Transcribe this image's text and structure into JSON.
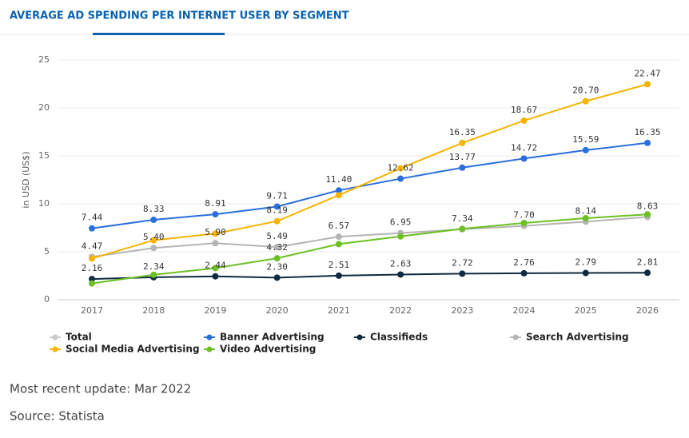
{
  "chart_data": {
    "type": "line",
    "title": "AVERAGE AD SPENDING PER INTERNET USER BY SEGMENT",
    "y_label": "in USD (US$)",
    "categories": [
      "2017",
      "2018",
      "2019",
      "2020",
      "2021",
      "2022",
      "2023",
      "2024",
      "2025",
      "2026"
    ],
    "ylim": [
      0,
      25
    ],
    "yticks": [
      0,
      5,
      10,
      15,
      20,
      25
    ],
    "grid": true,
    "legend_hidden": [
      {
        "name": "Total",
        "color": "#c8c8c8"
      }
    ],
    "series": [
      {
        "name": "Banner Advertising",
        "color": "#2a6fdb",
        "values": [
          7.44,
          8.33,
          8.91,
          9.71,
          11.4,
          12.62,
          13.77,
          14.72,
          15.59,
          16.35
        ],
        "value_labels": [
          "7.44",
          "8.33",
          "8.91",
          "9.71",
          "11.40",
          "12.62",
          "13.77",
          "14.72",
          "15.59",
          "16.35"
        ]
      },
      {
        "name": "Classifieds",
        "color": "#0f2a3f",
        "values": [
          2.16,
          2.34,
          2.44,
          2.3,
          2.51,
          2.63,
          2.72,
          2.76,
          2.79,
          2.81
        ],
        "value_labels": [
          "2.16",
          "2.34",
          "2.44",
          "2.30",
          "2.51",
          "2.63",
          "2.72",
          "2.76",
          "2.79",
          "2.81"
        ]
      },
      {
        "name": "Search Advertising",
        "color": "#b4b4b4",
        "values": [
          4.47,
          5.4,
          5.9,
          5.49,
          6.57,
          6.95,
          7.34,
          7.7,
          8.14,
          8.63
        ],
        "value_labels": [
          "4.47",
          "5.40",
          "5.90",
          "5.49",
          "6.57",
          "6.95",
          "7.34",
          "7.70",
          "8.14",
          "8.63"
        ]
      },
      {
        "name": "Social Media Advertising",
        "color": "#f5b400",
        "values": [
          4.3,
          6.2,
          6.9,
          8.19,
          10.9,
          13.7,
          16.35,
          18.67,
          20.7,
          22.47
        ],
        "value_labels": [
          null,
          null,
          null,
          "8.19",
          null,
          null,
          "16.35",
          "18.67",
          "20.70",
          "22.47"
        ]
      },
      {
        "name": "Video Advertising",
        "color": "#6cc024",
        "values": [
          1.7,
          2.6,
          3.3,
          4.32,
          5.8,
          6.6,
          7.4,
          8.0,
          8.5,
          8.9
        ],
        "value_labels": [
          null,
          null,
          null,
          "4.32",
          null,
          null,
          null,
          null,
          null,
          null
        ]
      }
    ],
    "footer": [
      "Most recent update: Mar 2022",
      "Source: Statista"
    ]
  }
}
